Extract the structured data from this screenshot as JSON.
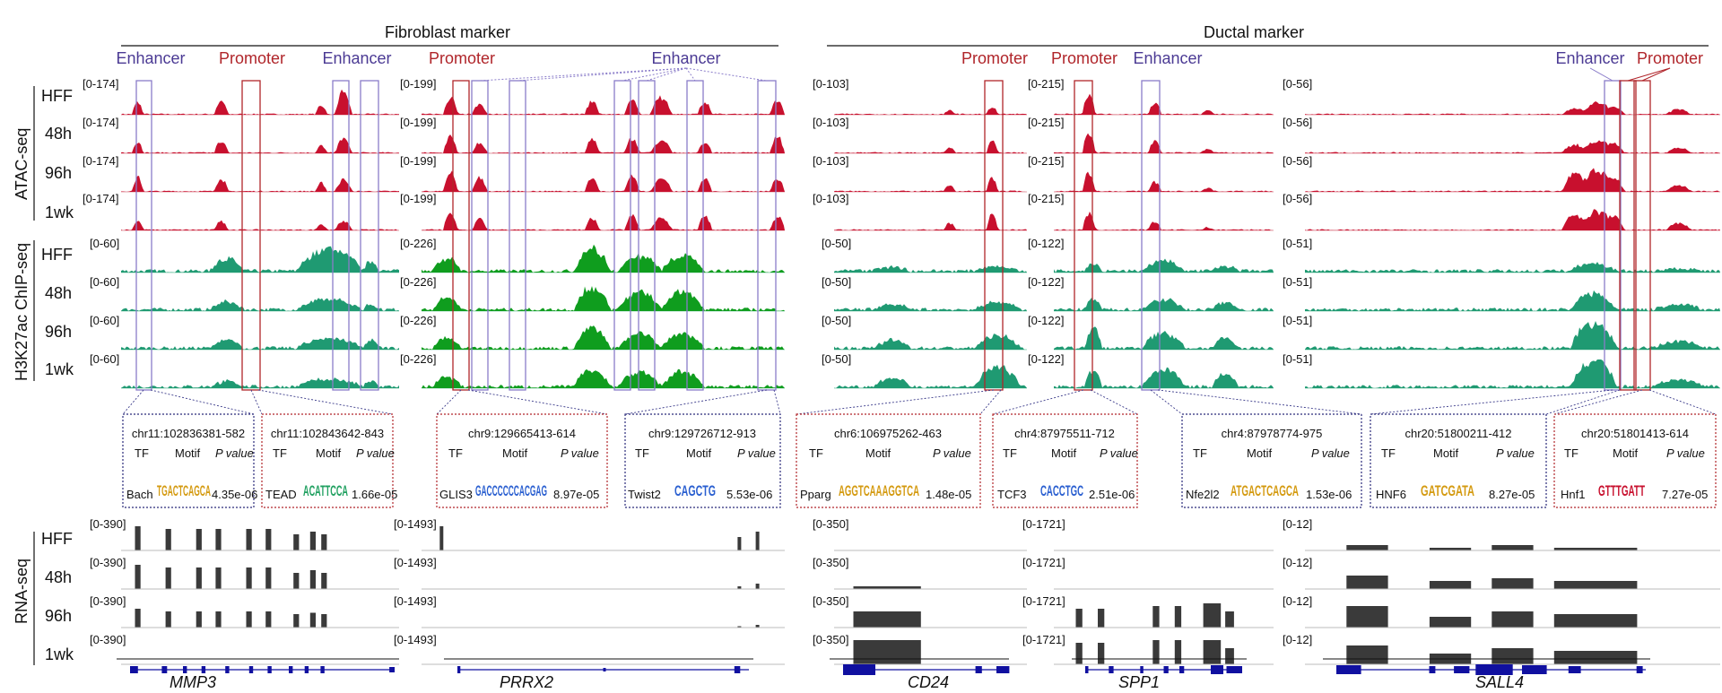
{
  "figure": {
    "sections": [
      {
        "id": "fib",
        "label": "Fibroblast marker"
      },
      {
        "id": "duct",
        "label": "Ductal marker"
      }
    ],
    "timepoints": [
      "HFF",
      "48h",
      "96h",
      "1wk"
    ],
    "assays": [
      "ATAC-seq",
      "H3K27ac ChIP-seq",
      "RNA-seq"
    ],
    "region_labels": {
      "enhancer": "Enhancer",
      "promoter": "Promoter"
    },
    "colors": {
      "atac": "#c8102e",
      "h3k27ac_fib": "#1f9a72",
      "h3k27ac_prrx2": "#0f9d1e",
      "rna": "#3a3a3a",
      "gene": "#1010a0",
      "enhancer": "#8a7cc9",
      "promoter": "#b0252a"
    }
  },
  "loci": [
    {
      "id": "mmp3",
      "gene": "MMP3",
      "atac_range": "[0-174]",
      "chip_range": "[0-60]",
      "rna_range": "[0-390]",
      "labels": [
        "Enhancer",
        "Promoter",
        "Enhancer"
      ]
    },
    {
      "id": "prrx2",
      "gene": "PRRX2",
      "atac_range": "[0-199]",
      "chip_range": "[0-226]",
      "rna_range": "[0-1493]",
      "labels": [
        "Promoter",
        "Enhancer"
      ]
    },
    {
      "id": "cd24",
      "gene": "CD24",
      "atac_range": "[0-103]",
      "chip_range": "[0-50]",
      "rna_range": "[0-350]",
      "labels": [
        "Promoter"
      ]
    },
    {
      "id": "spp1",
      "gene": "SPP1",
      "atac_range": "[0-215]",
      "chip_range": "[0-122]",
      "rna_range": "[0-1721]",
      "labels": [
        "Promoter",
        "Enhancer"
      ]
    },
    {
      "id": "sall4",
      "gene": "SALL4",
      "atac_range": "[0-56]",
      "chip_range": "[0-51]",
      "rna_range": "[0-12]",
      "labels": [
        "Enhancer",
        "Promoter"
      ]
    }
  ],
  "motifs": {
    "headers": {
      "tf": "TF",
      "motif": "Motif",
      "p": "P value"
    },
    "boxes": [
      {
        "coord": "chr11:102836381-582",
        "tf": "Bach",
        "logo": "TGACTCAGCA",
        "p": "4.35e-06"
      },
      {
        "coord": "chr11:102843642-843",
        "tf": "TEAD",
        "logo": "ACATTCCA",
        "p": "1.66e-05"
      },
      {
        "coord": "chr9:129665413-614",
        "tf": "GLIS3",
        "logo": "GACCCCCCACGAG",
        "p": "8.97e-05"
      },
      {
        "coord": "chr9:129726712-913",
        "tf": "Twist2",
        "logo": "CAGCTG",
        "p": "5.53e-06"
      },
      {
        "coord": "chr6:106975262-463",
        "tf": "Pparg",
        "logo": "AGGTCAAAGGTCA",
        "p": "1.48e-05"
      },
      {
        "coord": "chr4:87975511-712",
        "tf": "TCF3",
        "logo": "CACCTGC",
        "p": "2.51e-06"
      },
      {
        "coord": "chr4:87978774-975",
        "tf": "Nfe2l2",
        "logo": "ATGACTCAGCA",
        "p": "1.53e-06"
      },
      {
        "coord": "chr20:51800211-412",
        "tf": "HNF6",
        "logo": "GATCGATA",
        "p": "8.27e-05"
      },
      {
        "coord": "chr20:51801413-614",
        "tf": "Hnf1",
        "logo": "GTTTGATT",
        "p": "7.27e-05"
      }
    ]
  }
}
